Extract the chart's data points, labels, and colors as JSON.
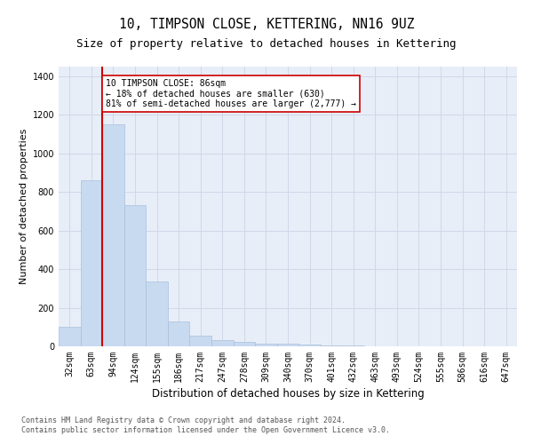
{
  "title1": "10, TIMPSON CLOSE, KETTERING, NN16 9UZ",
  "title2": "Size of property relative to detached houses in Kettering",
  "xlabel": "Distribution of detached houses by size in Kettering",
  "ylabel": "Number of detached properties",
  "categories": [
    "32sqm",
    "63sqm",
    "94sqm",
    "124sqm",
    "155sqm",
    "186sqm",
    "217sqm",
    "247sqm",
    "278sqm",
    "309sqm",
    "340sqm",
    "370sqm",
    "401sqm",
    "432sqm",
    "463sqm",
    "493sqm",
    "524sqm",
    "555sqm",
    "586sqm",
    "616sqm",
    "647sqm"
  ],
  "values": [
    100,
    860,
    1150,
    730,
    335,
    130,
    55,
    30,
    22,
    15,
    13,
    10,
    5,
    3,
    2,
    1,
    1,
    0,
    0,
    0,
    0
  ],
  "bar_color": "#c8daf0",
  "bar_edge_color": "#a8c0dc",
  "vline_color": "#cc0000",
  "annotation_text": "10 TIMPSON CLOSE: 86sqm\n← 18% of detached houses are smaller (630)\n81% of semi-detached houses are larger (2,777) →",
  "annotation_box_color": "white",
  "annotation_box_edge": "#cc0000",
  "ylim": [
    0,
    1450
  ],
  "yticks": [
    0,
    200,
    400,
    600,
    800,
    1000,
    1200,
    1400
  ],
  "grid_color": "#d0d8e8",
  "background_color": "#e8eef8",
  "footer1": "Contains HM Land Registry data © Crown copyright and database right 2024.",
  "footer2": "Contains public sector information licensed under the Open Government Licence v3.0.",
  "title1_fontsize": 10.5,
  "title2_fontsize": 9,
  "xlabel_fontsize": 8.5,
  "ylabel_fontsize": 8,
  "tick_fontsize": 7,
  "footer_fontsize": 6,
  "ann_fontsize": 7
}
